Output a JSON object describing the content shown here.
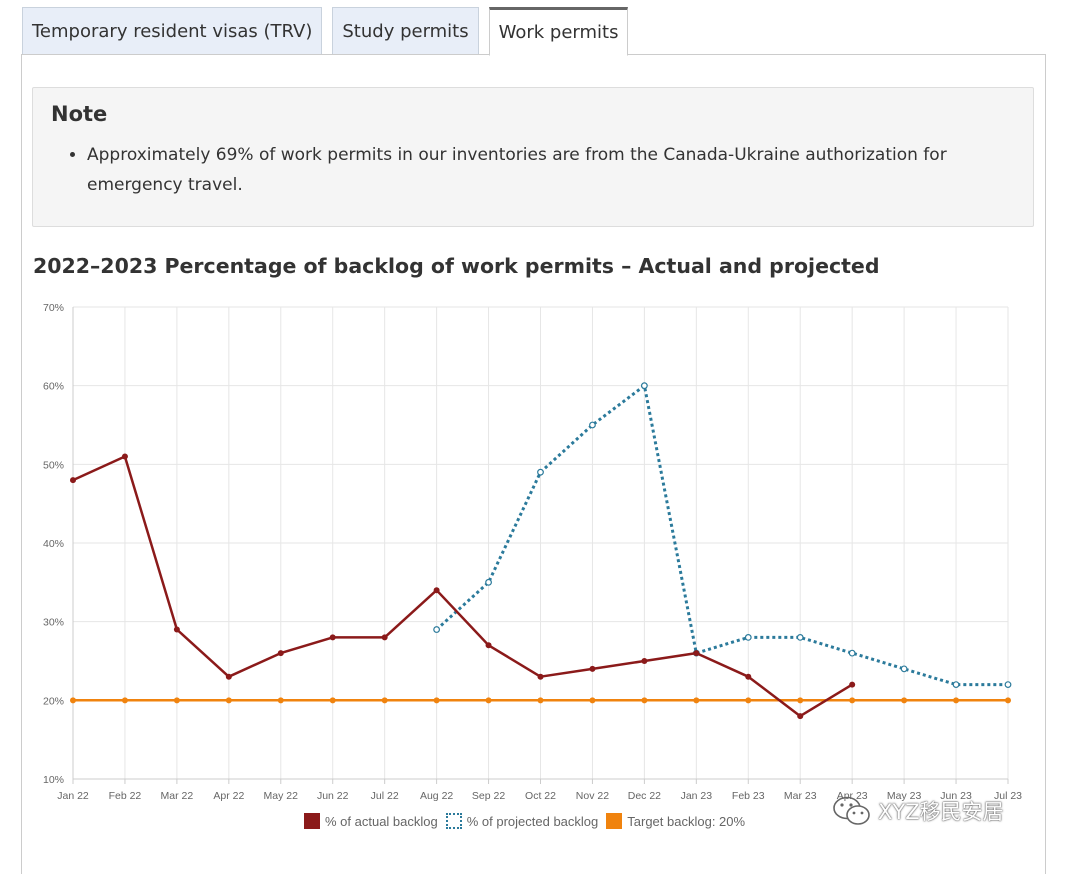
{
  "tabs": [
    {
      "label": "Temporary resident visas (TRV)",
      "active": false
    },
    {
      "label": "Study permits",
      "active": false
    },
    {
      "label": "Work permits",
      "active": true
    }
  ],
  "note": {
    "title": "Note",
    "items": [
      "Approximately 69% of work permits in our inventories are from the Canada-Ukraine authorization for emergency travel."
    ]
  },
  "chart_title": "2022–2023 Percentage of backlog of work permits – Actual and projected",
  "chart_data": {
    "type": "line",
    "title": "2022–2023 Percentage of backlog of work permits – Actual and projected",
    "categories": [
      "Jan 22",
      "Feb 22",
      "Mar 22",
      "Apr 22",
      "May 22",
      "Jun 22",
      "Jul 22",
      "Aug 22",
      "Sep 22",
      "Oct 22",
      "Nov 22",
      "Dec 22",
      "Jan 23",
      "Feb 23",
      "Mar 23",
      "Apr 23",
      "May 23",
      "Jun 23",
      "Jul 23"
    ],
    "ylim": [
      10,
      70
    ],
    "yticks": [
      10,
      20,
      30,
      40,
      50,
      60,
      70
    ],
    "ytick_suffix": "%",
    "grid": true,
    "legend_position": "bottom",
    "series": [
      {
        "name": "% of actual backlog",
        "color": "#8b1a1a",
        "style": "solid",
        "values": [
          48,
          51,
          29,
          23,
          26,
          28,
          28,
          34,
          27,
          23,
          24,
          25,
          26,
          23,
          18,
          22,
          null,
          null,
          null
        ]
      },
      {
        "name": "% of projected backlog",
        "color": "#2b7a9b",
        "style": "dotted",
        "values": [
          null,
          null,
          null,
          null,
          null,
          null,
          null,
          29,
          35,
          49,
          55,
          60,
          26,
          28,
          28,
          26,
          24,
          22,
          22
        ]
      },
      {
        "name": "Target backlog: 20%",
        "color": "#f0830e",
        "style": "solid",
        "values": [
          20,
          20,
          20,
          20,
          20,
          20,
          20,
          20,
          20,
          20,
          20,
          20,
          20,
          20,
          20,
          20,
          20,
          20,
          20
        ]
      }
    ]
  },
  "watermark": {
    "text": "XYZ移民安居"
  }
}
